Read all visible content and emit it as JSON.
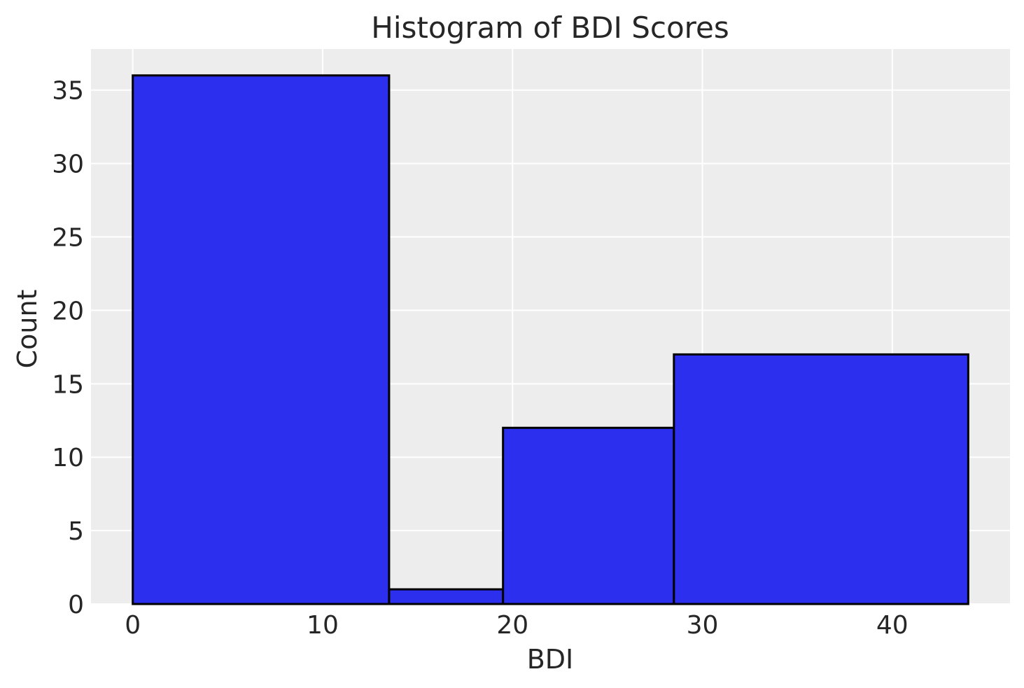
{
  "chart_data": {
    "type": "bar",
    "title": "Histogram of BDI Scores",
    "xlabel": "BDI",
    "ylabel": "Count",
    "xlim": [
      -2.2,
      46.2
    ],
    "ylim": [
      0,
      37.8
    ],
    "xticks": [
      0,
      10,
      20,
      30,
      40
    ],
    "yticks": [
      0,
      5,
      10,
      15,
      20,
      25,
      30,
      35
    ],
    "bins": [
      {
        "x0": 0,
        "x1": 13.5,
        "count": 36
      },
      {
        "x0": 13.5,
        "x1": 19.5,
        "count": 1
      },
      {
        "x0": 19.5,
        "x1": 28.5,
        "count": 12
      },
      {
        "x0": 28.5,
        "x1": 44,
        "count": 17
      }
    ],
    "grid": true,
    "colors": {
      "bar_fill": "#2c2fed",
      "bar_edge": "#000000",
      "plot_background": "#ededed",
      "grid": "#ffffff"
    }
  }
}
